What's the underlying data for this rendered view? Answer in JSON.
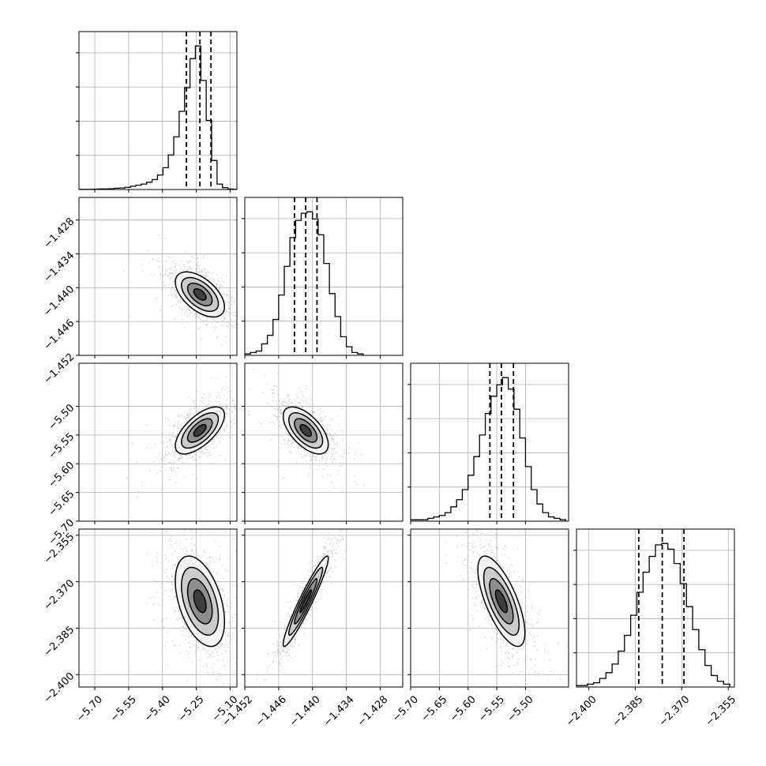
{
  "chart_data": {
    "type": "corner",
    "grid": true,
    "parameters": [
      {
        "range": [
          -5.77,
          -5.07
        ],
        "ticks": [
          -5.7,
          -5.55,
          -5.4,
          -5.25,
          -5.1
        ],
        "tick_labels": [
          "−5.70",
          "−5.55",
          "−5.40",
          "−5.25",
          "−5.10"
        ],
        "quantiles": [
          -5.294,
          -5.234,
          -5.185
        ],
        "hist_bins": [
          -5.77,
          -5.746,
          -5.722,
          -5.698,
          -5.674,
          -5.65,
          -5.626,
          -5.602,
          -5.578,
          -5.554,
          -5.53,
          -5.506,
          -5.482,
          -5.458,
          -5.434,
          -5.41,
          -5.386,
          -5.362,
          -5.338,
          -5.314,
          -5.29,
          -5.266,
          -5.242,
          -5.218,
          -5.194,
          -5.17,
          -5.146,
          -5.122,
          -5.098,
          -5.074
        ],
        "hist_counts": [
          1,
          1,
          1,
          2,
          3,
          3,
          4,
          7,
          8,
          12,
          18,
          24,
          30,
          40,
          55,
          80,
          120,
          190,
          290,
          430,
          560,
          720,
          790,
          600,
          380,
          160,
          30,
          10,
          3,
          1
        ]
      },
      {
        "range": [
          -1.452,
          -1.424
        ],
        "ticks": [
          -1.452,
          -1.446,
          -1.44,
          -1.434,
          -1.428
        ],
        "tick_labels": [
          "−1.452",
          "−1.446",
          "−1.440",
          "−1.434",
          "−1.428"
        ],
        "quantiles": [
          -1.4432,
          -1.4412,
          -1.4392
        ],
        "hist_bins": [
          -1.4515,
          -1.4505,
          -1.4495,
          -1.4485,
          -1.4475,
          -1.4465,
          -1.4455,
          -1.4445,
          -1.4435,
          -1.4425,
          -1.4415,
          -1.4405,
          -1.4395,
          -1.4385,
          -1.4375,
          -1.4365,
          -1.4355,
          -1.4345,
          -1.4335,
          -1.4325,
          -1.4315
        ],
        "hist_counts": [
          1,
          2,
          3,
          8,
          14,
          25,
          42,
          62,
          82,
          94,
          99,
          100,
          95,
          84,
          64,
          43,
          27,
          13,
          6,
          2,
          1
        ]
      },
      {
        "range": [
          -5.7,
          -5.425
        ],
        "ticks": [
          -5.7,
          -5.65,
          -5.6,
          -5.55,
          -5.5
        ],
        "tick_labels": [
          "−5.70",
          "−5.65",
          "−5.60",
          "−5.55",
          "−5.50"
        ],
        "quantiles": [
          -5.562,
          -5.542,
          -5.521
        ],
        "hist_bins": [
          -5.695,
          -5.685,
          -5.675,
          -5.665,
          -5.655,
          -5.645,
          -5.635,
          -5.625,
          -5.615,
          -5.605,
          -5.595,
          -5.585,
          -5.575,
          -5.565,
          -5.555,
          -5.545,
          -5.535,
          -5.525,
          -5.515,
          -5.505,
          -5.495,
          -5.485,
          -5.475,
          -5.465,
          -5.455,
          -5.445,
          -5.435
        ],
        "hist_counts": [
          1,
          1,
          1,
          2,
          3,
          4,
          6,
          10,
          15,
          22,
          32,
          45,
          60,
          75,
          87,
          95,
          100,
          92,
          78,
          58,
          38,
          22,
          12,
          6,
          3,
          2,
          1
        ]
      },
      {
        "range": [
          -2.404,
          -2.353
        ],
        "ticks": [
          -2.4,
          -2.385,
          -2.37,
          -2.355
        ],
        "tick_labels": [
          "−2.400",
          "−2.385",
          "−2.370",
          "−2.355"
        ],
        "quantiles": [
          -2.3839,
          -2.3763,
          -2.3693
        ],
        "hist_bins": [
          -2.4035,
          -2.4015,
          -2.3995,
          -2.3975,
          -2.3955,
          -2.3935,
          -2.3915,
          -2.3895,
          -2.3875,
          -2.3855,
          -2.3835,
          -2.3815,
          -2.3795,
          -2.3775,
          -2.3755,
          -2.3735,
          -2.3715,
          -2.3695,
          -2.3675,
          -2.3655,
          -2.3635,
          -2.3615,
          -2.3595,
          -2.3575,
          -2.3555
        ],
        "hist_counts": [
          1,
          1,
          2,
          3,
          6,
          10,
          16,
          25,
          36,
          50,
          66,
          80,
          91,
          99,
          100,
          96,
          86,
          72,
          56,
          40,
          26,
          15,
          8,
          4,
          2
        ]
      }
    ],
    "correlations": [
      [
        1.0,
        -0.55,
        0.65,
        -0.45
      ],
      [
        -0.55,
        1.0,
        -0.6,
        0.95
      ],
      [
        0.65,
        -0.6,
        1.0,
        -0.7
      ],
      [
        -0.45,
        0.95,
        -0.7,
        1.0
      ]
    ],
    "contour_levels_sigma": [
      0.5,
      1.0,
      1.5,
      2.0
    ],
    "colors": {
      "hist": "#000000",
      "contour": "#000000",
      "scatter": "#9a9a9a",
      "grid": "#b0b0b0",
      "quantile": "#000000"
    }
  }
}
